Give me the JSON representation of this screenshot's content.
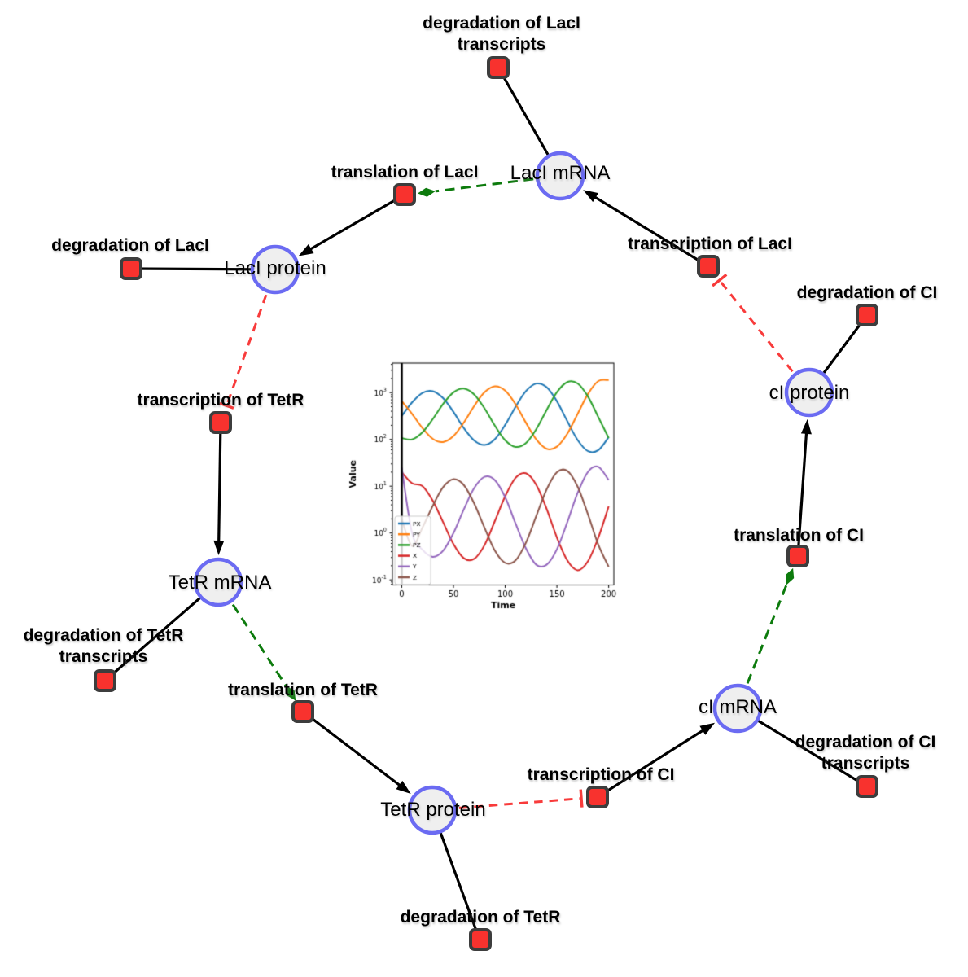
{
  "diagram": {
    "species": [
      {
        "id": "laci-mrna",
        "label": "LacI mRNA"
      },
      {
        "id": "laci-protein",
        "label": "LacI protein"
      },
      {
        "id": "tetr-mrna",
        "label": "TetR mRNA"
      },
      {
        "id": "tetr-protein",
        "label": "TetR protein"
      },
      {
        "id": "ci-mrna",
        "label": "cI mRNA"
      },
      {
        "id": "ci-protein",
        "label": "cI protein"
      }
    ],
    "reactions": [
      {
        "id": "degradation-of-laci-transcripts",
        "label": "degradation of LacI",
        "label2": "transcripts"
      },
      {
        "id": "translation-of-laci",
        "label": "translation of LacI"
      },
      {
        "id": "degradation-of-laci",
        "label": "degradation of LacI"
      },
      {
        "id": "transcription-of-tetr",
        "label": "transcription of TetR"
      },
      {
        "id": "degradation-of-tetr-transcripts",
        "label": "degradation of TetR",
        "label2": "transcripts"
      },
      {
        "id": "translation-of-tetr",
        "label": "translation of TetR"
      },
      {
        "id": "degradation-of-tetr",
        "label": "degradation of TetR"
      },
      {
        "id": "transcription-of-ci",
        "label": "transcription of CI"
      },
      {
        "id": "degradation-of-ci-transcripts",
        "label": "degradation of CI",
        "label2": "transcripts"
      },
      {
        "id": "translation-of-ci",
        "label": "translation of CI"
      },
      {
        "id": "degradation-of-ci",
        "label": "degradation of CI"
      },
      {
        "id": "transcription-of-laci",
        "label": "transcription of LacI"
      }
    ],
    "colors": {
      "species_fill": "#efefef",
      "species_border": "#6b6bf2",
      "reaction_fill": "#f8322e",
      "reaction_border": "#3d3d3d",
      "production_edge": "#000000",
      "modifier_edge": "#0d7b0d",
      "inhibition_edge": "#f83b3b"
    }
  },
  "chart_data": {
    "type": "line",
    "title": "",
    "xlabel": "Time",
    "ylabel": "Value",
    "x_ticks": [
      0,
      50,
      100,
      150,
      200
    ],
    "x_tick_labels": [
      "0",
      "50",
      "100",
      "150",
      "200"
    ],
    "y_scale": "log",
    "y_tick_exponents": [
      -1,
      0,
      1,
      2,
      3
    ],
    "y_tick_labels": [
      "10^-1",
      "10^0",
      "10^1",
      "10^2",
      "10^3"
    ],
    "x_range": [
      -9,
      205
    ],
    "y_log_range": [
      -1.11,
      3.63
    ],
    "vline_x": 0,
    "legend_position": "lower-left",
    "x": [
      0,
      10,
      20,
      30,
      40,
      50,
      60,
      70,
      80,
      90,
      100,
      110,
      120,
      130,
      140,
      150,
      160,
      170,
      180,
      190,
      200
    ],
    "series": [
      {
        "name": "PX",
        "color": "#1f77b4",
        "values": [
          316,
          617,
          987,
          1074,
          761,
          387,
          175,
          95,
          76,
          101,
          204,
          496,
          1074,
          1560,
          1303,
          653,
          245,
          97,
          56,
          59,
          112
        ]
      },
      {
        "name": "PY",
        "color": "#ff7f0e",
        "values": [
          656,
          352,
          175,
          103,
          88,
          118,
          229,
          516,
          1016,
          1364,
          1104,
          565,
          228,
          100,
          63,
          70,
          132,
          351,
          936,
          1766,
          1853
        ]
      },
      {
        "name": "PZ",
        "color": "#2ca02c",
        "values": [
          107,
          100,
          142,
          272,
          573,
          1014,
          1221,
          916,
          462,
          197,
          96,
          69,
          83,
          165,
          424,
          1021,
          1683,
          1566,
          821,
          299,
          107
        ]
      },
      {
        "name": "X",
        "color": "#d62728",
        "values": [
          20,
          11.6,
          10.1,
          4.9,
          1.7,
          0.58,
          0.29,
          0.28,
          0.55,
          1.8,
          6.1,
          15.1,
          18.9,
          10.7,
          3.3,
          0.8,
          0.26,
          0.16,
          0.25,
          0.8,
          3.7
        ]
      },
      {
        "name": "Y",
        "color": "#9467bd",
        "values": [
          25,
          1.0,
          0.44,
          0.31,
          0.42,
          1.0,
          3.2,
          9.1,
          15.9,
          13.5,
          5.8,
          1.6,
          0.47,
          0.21,
          0.21,
          0.45,
          1.7,
          7.2,
          20.3,
          26,
          13.5
        ]
      },
      {
        "name": "Z",
        "color": "#8c564b",
        "values": [
          2,
          0.53,
          1.3,
          3.8,
          9.5,
          14.1,
          10.6,
          4.3,
          1.3,
          0.42,
          0.23,
          0.26,
          0.62,
          2.3,
          8.5,
          19.9,
          21.2,
          9.8,
          2.5,
          0.56,
          0.19
        ]
      }
    ]
  }
}
